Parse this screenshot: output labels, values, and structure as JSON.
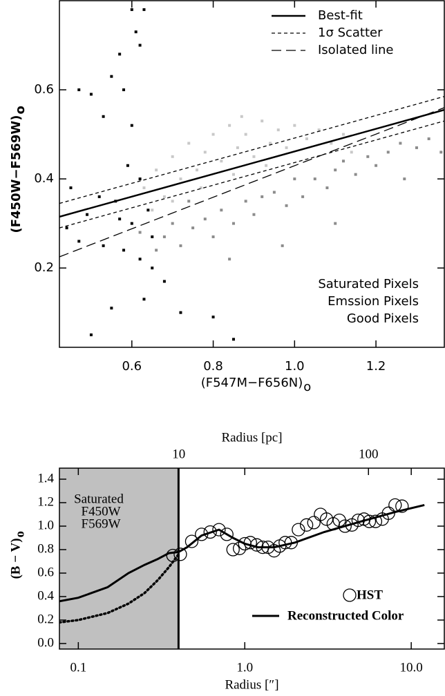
{
  "chart_data": [
    {
      "type": "scatter",
      "xlabel": "(F547M−F656N)",
      "xlabel_sub": "o",
      "ylabel": "(F450W−F569W)",
      "ylabel_sub": "o",
      "xlim": [
        0.422,
        1.368
      ],
      "ylim": [
        0.022,
        0.8
      ],
      "xticks": [
        0.6,
        0.8,
        {
          "value": 1,
          "label": "1.0"
        },
        1.2
      ],
      "yticks": [
        0.2,
        0.4,
        0.6
      ],
      "series": [
        {
          "name": "Saturated Pixels",
          "color": "#000000",
          "x": [
            0.47,
            0.5,
            0.53,
            0.55,
            0.57,
            0.58,
            0.6,
            0.61,
            0.62,
            0.63,
            0.6,
            0.59,
            0.56,
            0.52,
            0.49,
            0.44,
            0.47,
            0.53,
            0.58,
            0.62,
            0.65,
            0.68,
            0.55,
            0.63,
            0.72,
            0.8,
            0.85,
            0.6,
            0.64,
            0.5,
            0.65,
            0.45,
            0.62,
            0.57
          ],
          "values": [
            0.6,
            0.59,
            0.54,
            0.63,
            0.68,
            0.6,
            0.78,
            0.73,
            0.7,
            0.78,
            0.52,
            0.43,
            0.35,
            0.36,
            0.32,
            0.29,
            0.26,
            0.25,
            0.24,
            0.22,
            0.2,
            0.17,
            0.11,
            0.13,
            0.1,
            0.09,
            0.04,
            0.3,
            0.33,
            0.05,
            0.27,
            0.38,
            0.4,
            0.31
          ]
        },
        {
          "name": "Emssion Pixels",
          "color": "#8c8c8c",
          "x": [
            0.62,
            0.66,
            0.68,
            0.7,
            0.72,
            0.75,
            0.78,
            0.8,
            0.82,
            0.85,
            0.88,
            0.9,
            0.92,
            0.95,
            0.98,
            1.0,
            1.02,
            1.05,
            1.08,
            1.1,
            1.12,
            1.15,
            1.18,
            1.2,
            1.23,
            1.26,
            1.3,
            1.33,
            1.36,
            0.84,
            0.97,
            1.1,
            1.27,
            0.74
          ],
          "values": [
            0.28,
            0.24,
            0.27,
            0.3,
            0.25,
            0.29,
            0.31,
            0.27,
            0.33,
            0.3,
            0.35,
            0.32,
            0.36,
            0.37,
            0.34,
            0.4,
            0.36,
            0.4,
            0.38,
            0.42,
            0.44,
            0.41,
            0.45,
            0.43,
            0.46,
            0.48,
            0.47,
            0.49,
            0.46,
            0.22,
            0.25,
            0.3,
            0.4,
            0.35
          ]
        },
        {
          "name": "Good Pixels",
          "color": "#c8c8c8",
          "x": [
            0.63,
            0.66,
            0.68,
            0.7,
            0.72,
            0.74,
            0.76,
            0.78,
            0.8,
            0.82,
            0.84,
            0.86,
            0.88,
            0.9,
            0.92,
            0.94,
            0.96,
            0.98,
            1.0,
            1.03,
            1.06,
            1.09,
            1.12,
            0.65,
            0.7,
            0.77,
            0.85,
            0.93,
            1.14,
            0.87
          ],
          "values": [
            0.38,
            0.42,
            0.36,
            0.45,
            0.4,
            0.48,
            0.42,
            0.46,
            0.5,
            0.44,
            0.52,
            0.47,
            0.5,
            0.45,
            0.53,
            0.48,
            0.51,
            0.47,
            0.52,
            0.49,
            0.51,
            0.48,
            0.5,
            0.33,
            0.35,
            0.38,
            0.41,
            0.43,
            0.46,
            0.54
          ]
        }
      ],
      "lines": [
        {
          "name": "Best-fit",
          "dash": "solid",
          "x": [
            0.422,
            1.368
          ],
          "values": [
            0.315,
            0.555
          ]
        },
        {
          "name": "1σ Scatter",
          "dash": "short",
          "x": [
            0.422,
            1.368
          ],
          "values": [
            0.345,
            0.585
          ],
          "lower": [
            0.29,
            0.53
          ]
        },
        {
          "name": "Isolated line",
          "dash": "long",
          "x": [
            0.422,
            1.368
          ],
          "values": [
            0.225,
            0.56
          ]
        }
      ]
    },
    {
      "type": "line",
      "xscale": "log",
      "xlabel": "Radius [″]",
      "x2label": "Radius [pc]",
      "ylabel": "(B − V)",
      "ylabel_sub": "o",
      "xlim": [
        0.077,
        15.8
      ],
      "x2lim": [
        2.35,
        251
      ],
      "ylim": [
        -0.047,
        1.494
      ],
      "xticks": [
        0.1,
        {
          "value": 1,
          "label": "1.0"
        },
        {
          "value": 10,
          "label": "10.0"
        }
      ],
      "x2ticks": [
        10,
        100
      ],
      "yticks": [
        {
          "value": 0,
          "label": "0.0"
        },
        0.2,
        0.4,
        0.6,
        0.8,
        {
          "value": 1,
          "label": "1.0"
        },
        1.2,
        1.4
      ],
      "shaded_region": {
        "x_max": 0.4,
        "label_lines": [
          "Saturated",
          "F450W",
          "F569W"
        ]
      },
      "series": [
        {
          "name": "HST",
          "marker": "circle",
          "x": [
            0.37,
            0.41,
            0.48,
            0.55,
            0.62,
            0.7,
            0.78,
            0.85,
            0.93,
            1.0,
            1.08,
            1.18,
            1.28,
            1.38,
            1.5,
            1.62,
            1.75,
            1.9,
            2.1,
            2.35,
            2.6,
            2.85,
            3.1,
            3.4,
            3.7,
            4.0,
            4.4,
            4.8,
            5.2,
            5.6,
            6.1,
            6.7,
            7.3,
            8.0,
            8.8
          ],
          "values": [
            0.75,
            0.76,
            0.87,
            0.93,
            0.95,
            0.97,
            0.93,
            0.8,
            0.81,
            0.85,
            0.86,
            0.84,
            0.82,
            0.82,
            0.79,
            0.83,
            0.86,
            0.86,
            0.97,
            1.01,
            1.03,
            1.1,
            1.06,
            1.02,
            1.05,
            1.0,
            1.01,
            1.05,
            1.06,
            1.04,
            1.04,
            1.06,
            1.11,
            1.18,
            1.17
          ]
        },
        {
          "name": "Reconstructed Color",
          "marker": "line",
          "x": [
            0.077,
            0.1,
            0.15,
            0.2,
            0.25,
            0.3,
            0.35,
            0.4,
            0.45,
            0.55,
            0.7,
            0.85,
            1.0,
            1.2,
            1.5,
            2,
            3,
            5,
            8,
            12
          ],
          "values": [
            0.36,
            0.39,
            0.48,
            0.6,
            0.67,
            0.72,
            0.77,
            0.78,
            0.82,
            0.92,
            0.97,
            0.9,
            0.85,
            0.82,
            0.82,
            0.86,
            0.95,
            1.04,
            1.12,
            1.18
          ]
        }
      ],
      "dotted_line": {
        "x": [
          0.077,
          0.1,
          0.15,
          0.2,
          0.25,
          0.3,
          0.35,
          0.4
        ],
        "values": [
          0.18,
          0.2,
          0.26,
          0.34,
          0.43,
          0.54,
          0.65,
          0.76
        ]
      }
    }
  ]
}
